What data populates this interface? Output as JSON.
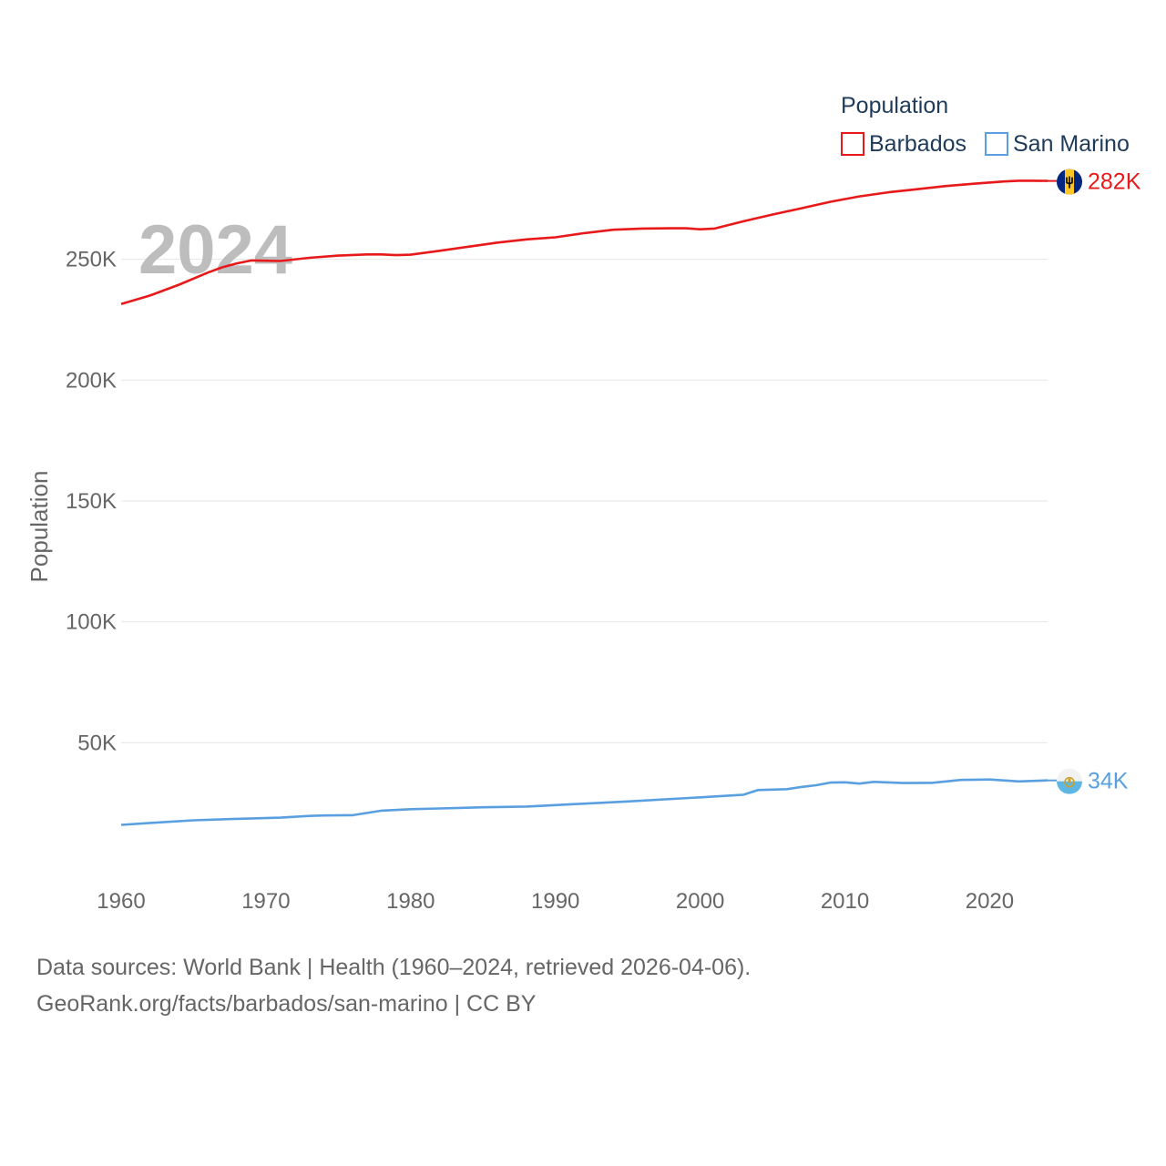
{
  "chart_data": {
    "type": "line",
    "year_label": "2024",
    "ylabel": "Population",
    "xlim": [
      1960,
      2024
    ],
    "ylim": [
      0,
      280000
    ],
    "x_ticks": [
      1960,
      1970,
      1980,
      1990,
      2000,
      2010,
      2020
    ],
    "y_ticks": [
      {
        "value": 50000,
        "label": "50K"
      },
      {
        "value": 100000,
        "label": "100K"
      },
      {
        "value": 150000,
        "label": "150K"
      },
      {
        "value": 200000,
        "label": "200K"
      },
      {
        "value": 250000,
        "label": "250K"
      }
    ],
    "legend": {
      "title": "Population",
      "position": "top-right"
    },
    "series": [
      {
        "name": "Barbados",
        "color": "#e8191a",
        "end_label": "282K",
        "flag_icon": "barbados-flag-icon",
        "x": [
          1960,
          1962,
          1964,
          1966,
          1967,
          1968,
          1969,
          1971,
          1973,
          1975,
          1977,
          1978,
          1979,
          1980,
          1982,
          1984,
          1986,
          1988,
          1990,
          1992,
          1994,
          1996,
          1998,
          1999,
          2000,
          2001,
          2003,
          2005,
          2007,
          2009,
          2011,
          2013,
          2015,
          2017,
          2019,
          2021,
          2022,
          2023,
          2024
        ],
        "values": [
          231500,
          235000,
          239500,
          244500,
          246700,
          248300,
          249500,
          249300,
          250600,
          251500,
          252000,
          252000,
          251700,
          251900,
          253500,
          255200,
          256900,
          258200,
          259100,
          260800,
          262200,
          262700,
          262800,
          262800,
          262400,
          262700,
          265700,
          268500,
          271100,
          273800,
          276000,
          277700,
          279000,
          280300,
          281300,
          282200,
          282500,
          282500,
          282400
        ]
      },
      {
        "name": "San Marino",
        "color": "#5aa0e0",
        "end_label": "34K",
        "flag_icon": "san-marino-flag-icon",
        "x": [
          1960,
          1962,
          1965,
          1968,
          1971,
          1973,
          1974,
          1976,
          1978,
          1980,
          1982,
          1985,
          1988,
          1990,
          1995,
          2000,
          2003,
          2004,
          2006,
          2007,
          2008,
          2009,
          2010,
          2011,
          2012,
          2014,
          2016,
          2018,
          2020,
          2022,
          2024
        ],
        "values": [
          16000,
          16800,
          17900,
          18500,
          19000,
          19700,
          19900,
          20000,
          21900,
          22500,
          22800,
          23300,
          23600,
          24200,
          25700,
          27400,
          28500,
          30400,
          30800,
          31700,
          32400,
          33500,
          33600,
          33100,
          33800,
          33300,
          33400,
          34600,
          34800,
          34000,
          34400
        ]
      }
    ]
  },
  "footer": {
    "line1": "Data sources: World Bank | Health (1960–2024, retrieved 2026-04-06).",
    "line2": "GeoRank.org/facts/barbados/san-marino | CC BY"
  }
}
